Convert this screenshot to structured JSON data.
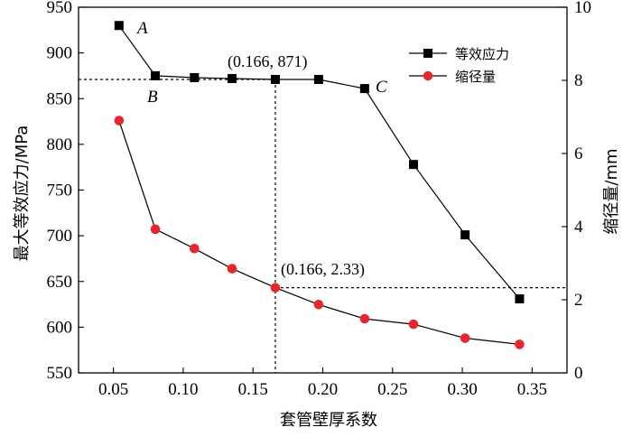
{
  "chart_data": {
    "type": "line",
    "xlabel": "套管壁厚系数",
    "ylabel_left": "最大等效应力/MPa",
    "ylabel_right": "缩径量/mm",
    "xlim": [
      0.025,
      0.375
    ],
    "ylim_left": [
      550,
      950
    ],
    "ylim_right": [
      0,
      10
    ],
    "x_ticks": [
      "0.05",
      "0.10",
      "0.15",
      "0.20",
      "0.25",
      "0.30",
      "0.35"
    ],
    "y_left_ticks": [
      "550",
      "600",
      "650",
      "700",
      "750",
      "800",
      "850",
      "900",
      "950"
    ],
    "y_right_ticks": [
      "0",
      "2",
      "4",
      "6",
      "8",
      "10"
    ],
    "legend_position": "top-right",
    "series": [
      {
        "name": "等效应力",
        "axis": "left",
        "marker": "square",
        "color": "#000000",
        "x": [
          0.054,
          0.08,
          0.108,
          0.135,
          0.166,
          0.197,
          0.23,
          0.265,
          0.302,
          0.341
        ],
        "y": [
          930,
          875,
          873,
          872,
          871,
          871,
          861,
          778,
          701,
          631
        ]
      },
      {
        "name": "缩径量",
        "axis": "right",
        "marker": "circle",
        "color": "#e8262d",
        "x": [
          0.054,
          0.08,
          0.108,
          0.135,
          0.166,
          0.197,
          0.23,
          0.265,
          0.302,
          0.341
        ],
        "y": [
          6.9,
          3.93,
          3.4,
          2.85,
          2.33,
          1.87,
          1.48,
          1.33,
          0.95,
          0.78
        ]
      }
    ],
    "annotations": {
      "point_A": "A",
      "point_B": "B",
      "point_C": "C",
      "stress_label": "(0.166, 871)",
      "shrink_label": "(0.166, 2.33)"
    },
    "reference": {
      "x": 0.166,
      "stress": 871,
      "shrink": 2.33
    }
  }
}
